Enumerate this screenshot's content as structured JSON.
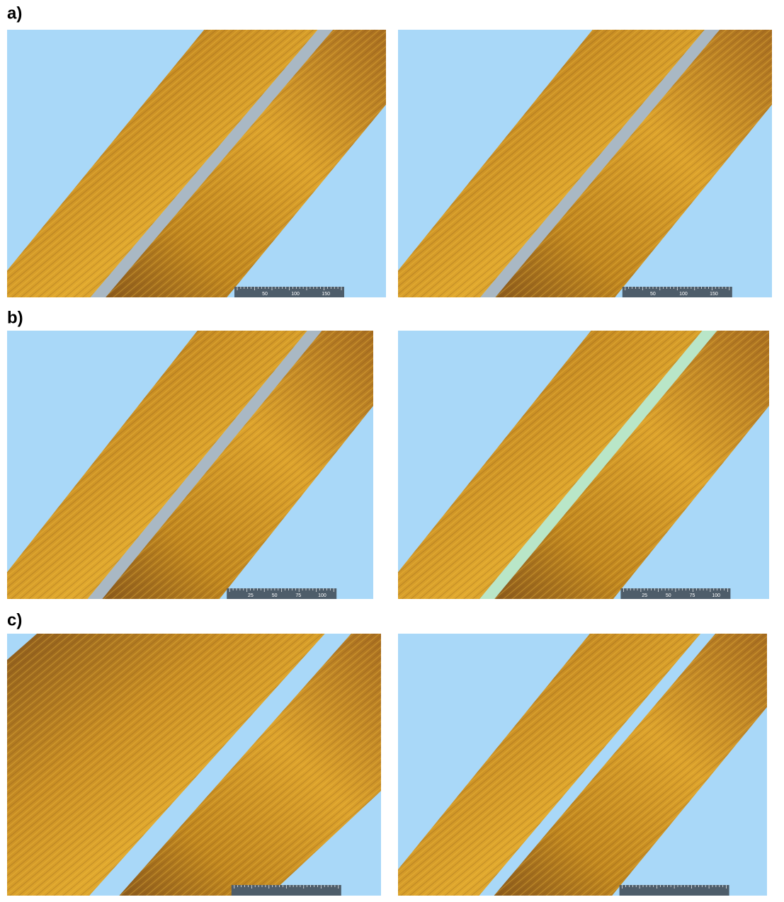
{
  "rows": [
    {
      "label": "a)",
      "images": [
        {
          "scale_labels": [
            "50",
            "100",
            "150"
          ]
        },
        {
          "scale_labels": [
            "50",
            "100",
            "150"
          ]
        }
      ]
    },
    {
      "label": "b)",
      "images": [
        {
          "scale_labels": [
            "25",
            "50",
            "75",
            "100"
          ]
        },
        {
          "scale_labels": [
            "25",
            "50",
            "75",
            "100"
          ]
        }
      ]
    },
    {
      "label": "c)",
      "images": [
        {},
        {}
      ]
    }
  ]
}
